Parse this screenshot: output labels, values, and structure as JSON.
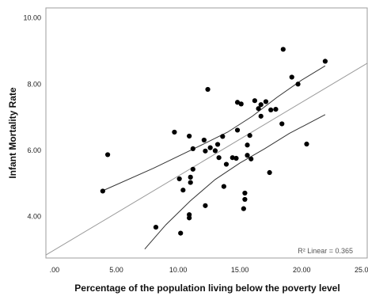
{
  "colors": {
    "points": "#000000",
    "fit_line": "#9a9a9a",
    "ci_lines": "#333333",
    "frame": "#9e9e9e",
    "background": "#ffffff"
  },
  "chart_data": {
    "type": "scatter",
    "title": "",
    "xlabel": "Percentage of the population living below the poverty level",
    "ylabel": "Infant Mortality Rate",
    "xlim": [
      -0.7,
      25.3
    ],
    "ylim": [
      2.75,
      10.3
    ],
    "x_ticks": [
      0,
      5,
      10,
      15,
      20,
      25
    ],
    "x_tick_labels": [
      ".00",
      "5.00",
      "10.00",
      "15.00",
      "20.00",
      "25.00"
    ],
    "y_ticks": [
      4,
      6,
      8,
      10
    ],
    "y_tick_labels": [
      "4.00",
      "6.00",
      "8.00",
      "10.00"
    ],
    "grid": false,
    "annotation": "R² Linear = 0.365",
    "points": [
      {
        "x": 3.9,
        "y": 4.77
      },
      {
        "x": 4.3,
        "y": 5.87
      },
      {
        "x": 8.2,
        "y": 3.68
      },
      {
        "x": 9.7,
        "y": 6.55
      },
      {
        "x": 10.1,
        "y": 5.14
      },
      {
        "x": 10.2,
        "y": 3.5
      },
      {
        "x": 10.4,
        "y": 4.8
      },
      {
        "x": 10.9,
        "y": 6.43
      },
      {
        "x": 10.9,
        "y": 4.06
      },
      {
        "x": 10.9,
        "y": 3.96
      },
      {
        "x": 11.0,
        "y": 5.19
      },
      {
        "x": 11.0,
        "y": 5.03
      },
      {
        "x": 11.2,
        "y": 6.05
      },
      {
        "x": 11.2,
        "y": 5.43
      },
      {
        "x": 12.1,
        "y": 6.31
      },
      {
        "x": 12.2,
        "y": 5.98
      },
      {
        "x": 12.2,
        "y": 4.33
      },
      {
        "x": 12.4,
        "y": 7.84
      },
      {
        "x": 12.6,
        "y": 6.08
      },
      {
        "x": 13.0,
        "y": 5.99
      },
      {
        "x": 13.2,
        "y": 6.18
      },
      {
        "x": 13.3,
        "y": 5.78
      },
      {
        "x": 13.6,
        "y": 6.42
      },
      {
        "x": 13.7,
        "y": 4.91
      },
      {
        "x": 13.9,
        "y": 5.58
      },
      {
        "x": 14.4,
        "y": 5.78
      },
      {
        "x": 14.7,
        "y": 5.76
      },
      {
        "x": 14.8,
        "y": 6.61
      },
      {
        "x": 14.8,
        "y": 7.45
      },
      {
        "x": 15.1,
        "y": 7.4
      },
      {
        "x": 15.3,
        "y": 4.24
      },
      {
        "x": 15.4,
        "y": 4.71
      },
      {
        "x": 15.4,
        "y": 4.52
      },
      {
        "x": 15.6,
        "y": 6.16
      },
      {
        "x": 15.6,
        "y": 5.85
      },
      {
        "x": 15.8,
        "y": 6.45
      },
      {
        "x": 15.9,
        "y": 5.74
      },
      {
        "x": 16.2,
        "y": 7.5
      },
      {
        "x": 16.5,
        "y": 7.26
      },
      {
        "x": 16.7,
        "y": 7.38
      },
      {
        "x": 16.7,
        "y": 7.03
      },
      {
        "x": 17.1,
        "y": 7.47
      },
      {
        "x": 17.4,
        "y": 5.33
      },
      {
        "x": 17.5,
        "y": 7.22
      },
      {
        "x": 17.9,
        "y": 7.24
      },
      {
        "x": 18.4,
        "y": 6.8
      },
      {
        "x": 18.5,
        "y": 9.05
      },
      {
        "x": 19.2,
        "y": 8.21
      },
      {
        "x": 19.7,
        "y": 8.0
      },
      {
        "x": 20.4,
        "y": 6.19
      },
      {
        "x": 21.9,
        "y": 8.69
      }
    ],
    "fit_line": {
      "x": [
        -0.7,
        25.3
      ],
      "y": [
        2.84,
        8.63
      ]
    },
    "ci_upper": {
      "x": [
        3.9,
        8,
        12,
        14,
        16,
        18,
        20,
        21.9
      ],
      "y": [
        4.78,
        5.46,
        6.18,
        6.55,
        7.03,
        7.6,
        8.12,
        8.55
      ]
    },
    "ci_lower": {
      "x": [
        7.3,
        9,
        11,
        13,
        15,
        17,
        19,
        21.9
      ],
      "y": [
        3.02,
        3.75,
        4.48,
        5.12,
        5.62,
        6.05,
        6.51,
        7.08
      ]
    }
  }
}
